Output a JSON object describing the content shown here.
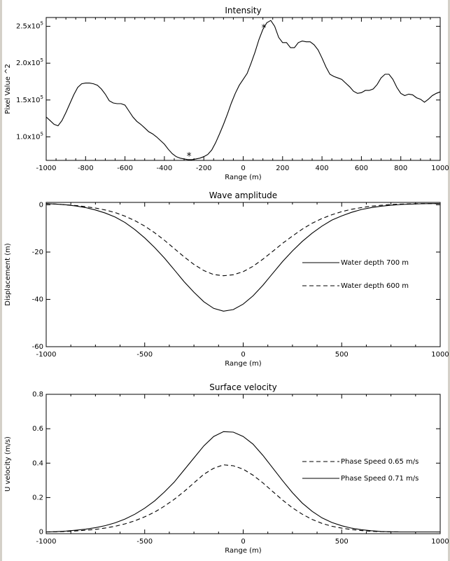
{
  "chart_data": [
    {
      "type": "line",
      "title": "Intensity",
      "xlabel": "Range (m)",
      "ylabel": "Pixel Value ^2",
      "xlim": [
        -1000,
        1000
      ],
      "ylim": [
        68000,
        262000
      ],
      "xticks": [
        -1000,
        -800,
        -600,
        -400,
        -200,
        0,
        200,
        400,
        600,
        800,
        1000
      ],
      "yticks": [
        {
          "value": 100000,
          "mantissa": "1.0",
          "base": "x10",
          "exp": "5"
        },
        {
          "value": 150000,
          "mantissa": "1.5",
          "base": "x10",
          "exp": "5"
        },
        {
          "value": 200000,
          "mantissa": "2.0",
          "base": "x10",
          "exp": "5"
        },
        {
          "value": 250000,
          "mantissa": "2.5",
          "base": "x10",
          "exp": "5"
        }
      ],
      "grid": false,
      "series": [
        {
          "style": "solid",
          "x": [
            -1000,
            -980,
            -960,
            -940,
            -920,
            -900,
            -880,
            -860,
            -840,
            -820,
            -800,
            -780,
            -760,
            -740,
            -720,
            -700,
            -680,
            -660,
            -640,
            -620,
            -600,
            -580,
            -560,
            -540,
            -520,
            -500,
            -480,
            -460,
            -440,
            -420,
            -400,
            -380,
            -360,
            -340,
            -320,
            -300,
            -280,
            -260,
            -240,
            -220,
            -200,
            -180,
            -160,
            -140,
            -120,
            -100,
            -80,
            -60,
            -40,
            -20,
            0,
            20,
            40,
            60,
            80,
            100,
            120,
            140,
            160,
            180,
            200,
            220,
            240,
            260,
            280,
            300,
            320,
            340,
            360,
            380,
            400,
            420,
            440,
            460,
            480,
            500,
            520,
            540,
            560,
            580,
            600,
            620,
            640,
            660,
            680,
            700,
            720,
            740,
            760,
            780,
            800,
            820,
            840,
            860,
            880,
            900,
            920,
            940,
            960,
            980,
            1000
          ],
          "y": [
            127000,
            122000,
            117000,
            115000,
            122000,
            133000,
            145000,
            157000,
            167000,
            172000,
            173000,
            173000,
            172000,
            170000,
            165000,
            158000,
            149000,
            146000,
            145000,
            145000,
            143000,
            135000,
            127000,
            121000,
            117000,
            112000,
            107000,
            104000,
            100000,
            95000,
            90000,
            83000,
            77000,
            73000,
            71000,
            70000,
            69000,
            69000,
            70000,
            71000,
            73000,
            76000,
            82000,
            92000,
            104000,
            117000,
            131000,
            146000,
            159000,
            170000,
            178000,
            186000,
            200000,
            215000,
            232000,
            246000,
            255000,
            258000,
            250000,
            235000,
            228000,
            228000,
            221000,
            221000,
            228000,
            230000,
            229000,
            229000,
            225000,
            218000,
            207000,
            195000,
            185000,
            182000,
            180000,
            178000,
            173000,
            168000,
            162000,
            159000,
            160000,
            163000,
            163000,
            165000,
            171000,
            180000,
            185000,
            185000,
            178000,
            167000,
            159000,
            156000,
            158000,
            157000,
            153000,
            151000,
            147000,
            151000,
            156000,
            159000,
            161000
          ]
        }
      ],
      "markers": [
        {
          "x": -275,
          "y": 74000,
          "symbol": "*"
        },
        {
          "x": 105,
          "y": 248000,
          "symbol": "*"
        }
      ]
    },
    {
      "type": "line",
      "title": "Wave amplitude",
      "xlabel": "Range (m)",
      "ylabel": "Displacement (m)",
      "xlim": [
        -1000,
        1000
      ],
      "ylim": [
        -60,
        1
      ],
      "xticks": [
        -1000,
        -500,
        0,
        500,
        1000
      ],
      "yticks": [
        -60,
        -40,
        -20,
        0
      ],
      "grid": false,
      "legend": "right",
      "series": [
        {
          "name": "Water depth 700 m",
          "style": "solid",
          "x": [
            -1000,
            -950,
            -900,
            -850,
            -800,
            -750,
            -700,
            -650,
            -600,
            -550,
            -500,
            -450,
            -400,
            -350,
            -300,
            -250,
            -200,
            -150,
            -100,
            -50,
            0,
            50,
            100,
            150,
            200,
            250,
            300,
            350,
            400,
            450,
            500,
            550,
            600,
            650,
            700,
            750,
            800,
            850,
            900,
            950,
            1000
          ],
          "y": [
            0.5,
            0.3,
            0.0,
            -0.5,
            -1.2,
            -2.2,
            -3.5,
            -5.2,
            -7.5,
            -10.5,
            -14.0,
            -18.0,
            -22.5,
            -27.5,
            -32.5,
            -37.0,
            -41.0,
            -43.8,
            -45.0,
            -44.3,
            -42.0,
            -38.5,
            -34.0,
            -29.0,
            -24.0,
            -19.5,
            -15.5,
            -12.0,
            -9.0,
            -6.5,
            -4.7,
            -3.2,
            -2.0,
            -1.2,
            -0.6,
            -0.2,
            0.1,
            0.3,
            0.4,
            0.5,
            0.5
          ]
        },
        {
          "name": "Water depth 600 m",
          "style": "dashed",
          "x": [
            -1000,
            -950,
            -900,
            -850,
            -800,
            -750,
            -700,
            -650,
            -600,
            -550,
            -500,
            -450,
            -400,
            -350,
            -300,
            -250,
            -200,
            -150,
            -100,
            -50,
            0,
            50,
            100,
            150,
            200,
            250,
            300,
            350,
            400,
            450,
            500,
            550,
            600,
            650,
            700,
            750,
            800,
            850,
            900,
            950,
            1000
          ],
          "y": [
            0.5,
            0.3,
            0.0,
            -0.3,
            -0.8,
            -1.4,
            -2.2,
            -3.3,
            -4.8,
            -6.7,
            -9.0,
            -11.8,
            -15.0,
            -18.5,
            -22.0,
            -25.2,
            -27.8,
            -29.5,
            -30.0,
            -29.6,
            -28.3,
            -26.0,
            -23.0,
            -19.7,
            -16.3,
            -13.2,
            -10.3,
            -7.8,
            -5.8,
            -4.2,
            -2.9,
            -1.9,
            -1.2,
            -0.6,
            -0.2,
            0.1,
            0.3,
            0.4,
            0.5,
            0.5,
            0.5
          ]
        }
      ]
    },
    {
      "type": "line",
      "title": "Surface velocity",
      "xlabel": "Range (m)",
      "ylabel": "U velocity (m/s)",
      "xlim": [
        -1000,
        1000
      ],
      "ylim": [
        -0.01,
        0.8
      ],
      "xticks": [
        -1000,
        -500,
        0,
        500,
        1000
      ],
      "yticks": [
        0.0,
        0.2,
        0.4,
        0.6,
        0.8
      ],
      "grid": false,
      "legend": "right",
      "series": [
        {
          "name": "Phase Speed 0.65 m/s",
          "style": "dashed",
          "x": [
            -1000,
            -950,
            -900,
            -850,
            -800,
            -750,
            -700,
            -650,
            -600,
            -550,
            -500,
            -450,
            -400,
            -350,
            -300,
            -250,
            -200,
            -150,
            -100,
            -50,
            0,
            50,
            100,
            150,
            200,
            250,
            300,
            350,
            400,
            450,
            500,
            550,
            600,
            650,
            700,
            750,
            800,
            850,
            900,
            950,
            1000
          ],
          "y": [
            0.0,
            0.001,
            0.003,
            0.006,
            0.01,
            0.015,
            0.023,
            0.033,
            0.047,
            0.065,
            0.088,
            0.115,
            0.15,
            0.19,
            0.235,
            0.285,
            0.335,
            0.37,
            0.39,
            0.385,
            0.365,
            0.33,
            0.285,
            0.235,
            0.185,
            0.14,
            0.103,
            0.073,
            0.05,
            0.033,
            0.022,
            0.014,
            0.008,
            0.004,
            0.002,
            0.001,
            0.0,
            0.0,
            0.0,
            0.0,
            0.0
          ]
        },
        {
          "name": "Phase Speed 0.71 m/s",
          "style": "solid",
          "x": [
            -1000,
            -950,
            -900,
            -850,
            -800,
            -750,
            -700,
            -650,
            -600,
            -550,
            -500,
            -450,
            -400,
            -350,
            -300,
            -250,
            -200,
            -150,
            -100,
            -50,
            0,
            50,
            100,
            150,
            200,
            250,
            300,
            350,
            400,
            450,
            500,
            550,
            600,
            650,
            700,
            750,
            800,
            850,
            900,
            950,
            1000
          ],
          "y": [
            0.0,
            0.002,
            0.005,
            0.01,
            0.016,
            0.025,
            0.037,
            0.053,
            0.075,
            0.103,
            0.138,
            0.18,
            0.232,
            0.29,
            0.36,
            0.43,
            0.5,
            0.555,
            0.583,
            0.58,
            0.555,
            0.51,
            0.445,
            0.372,
            0.298,
            0.228,
            0.168,
            0.12,
            0.082,
            0.055,
            0.036,
            0.022,
            0.013,
            0.007,
            0.003,
            0.001,
            0.0,
            0.0,
            0.0,
            0.0,
            0.0
          ]
        }
      ]
    }
  ]
}
